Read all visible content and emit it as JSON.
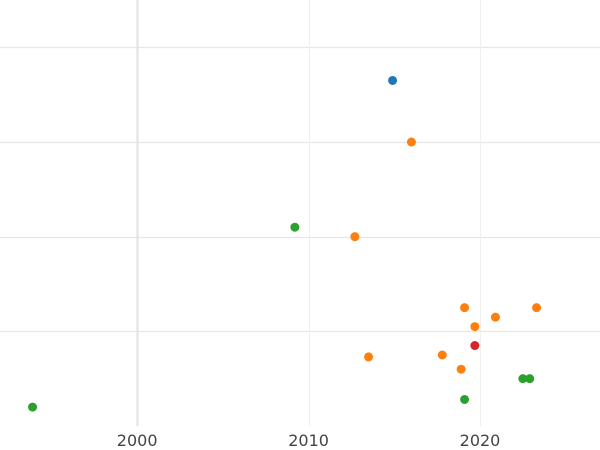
{
  "chart_data": {
    "type": "scatter",
    "title": "",
    "xlabel": "",
    "ylabel": "",
    "grid": true,
    "legend": "none",
    "xlim": [
      1992,
      2027
    ],
    "ylim": [
      0,
      4.5
    ],
    "x_ticks": [
      2000,
      2010,
      2020
    ],
    "x_tick_labels": [
      "2000",
      "2010",
      "2020"
    ],
    "y_gridlines": [
      1,
      2,
      3,
      4
    ],
    "series": [
      {
        "color": "#1f77b4",
        "points": [
          {
            "x": 2014.9,
            "y": 3.65
          }
        ]
      },
      {
        "color": "#ff7f0e",
        "points": [
          {
            "x": 2016.0,
            "y": 3.0
          },
          {
            "x": 2012.7,
            "y": 2.0
          },
          {
            "x": 2019.1,
            "y": 1.25
          },
          {
            "x": 2023.3,
            "y": 1.25
          },
          {
            "x": 2020.9,
            "y": 1.15
          },
          {
            "x": 2019.7,
            "y": 1.05
          },
          {
            "x": 2013.5,
            "y": 0.73
          },
          {
            "x": 2017.8,
            "y": 0.75
          },
          {
            "x": 2018.9,
            "y": 0.6
          }
        ]
      },
      {
        "color": "#2ca02c",
        "points": [
          {
            "x": 2009.2,
            "y": 2.1
          },
          {
            "x": 2022.5,
            "y": 0.5
          },
          {
            "x": 2022.9,
            "y": 0.5
          },
          {
            "x": 2019.1,
            "y": 0.28
          },
          {
            "x": 1993.9,
            "y": 0.2
          }
        ]
      },
      {
        "color": "#d62728",
        "points": [
          {
            "x": 2019.7,
            "y": 0.85
          }
        ]
      }
    ]
  }
}
